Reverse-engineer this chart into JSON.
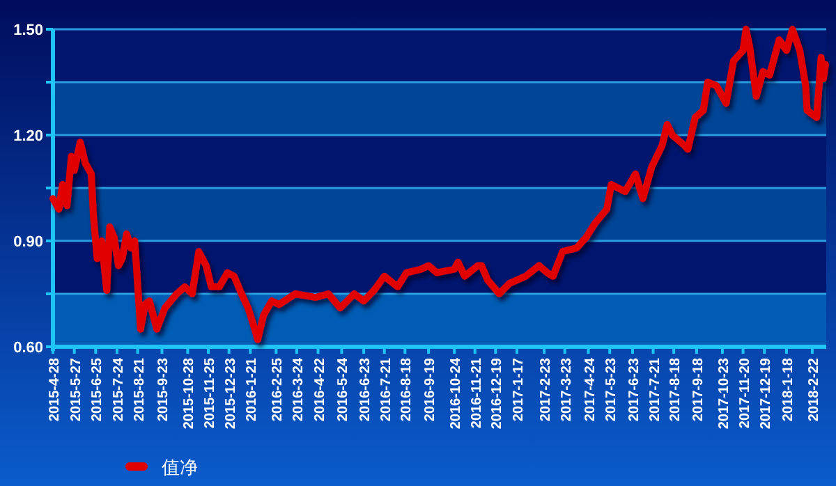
{
  "chart_data": {
    "type": "line",
    "legend": "bottom",
    "grid": "y",
    "marker": "none",
    "line_style": "solid",
    "xlim": [
      "2015-04-28",
      "2018-03-13"
    ],
    "ylim": [
      0.6,
      1.5
    ],
    "bands": [
      {
        "axis": "y",
        "from": 0.6,
        "to": 0.75,
        "color": "#005cb4"
      },
      {
        "axis": "y",
        "from": 0.9,
        "to": 1.05,
        "color": "#004596"
      },
      {
        "axis": "y",
        "from": 1.2,
        "to": 1.35,
        "color": "#004596"
      }
    ],
    "yticks": [
      {
        "value": 0.6,
        "label": "0.60"
      },
      {
        "value": 0.75,
        "label": null
      },
      {
        "value": 0.9,
        "label": "0.90"
      },
      {
        "value": 1.05,
        "label": null
      },
      {
        "value": 1.2,
        "label": "1.20"
      },
      {
        "value": 1.35,
        "label": null
      },
      {
        "value": 1.5,
        "label": "1.50"
      }
    ],
    "xticks": [
      {
        "value": "2015-04-28",
        "label": "2015-4-28"
      },
      {
        "value": "2015-05-27",
        "label": "2015-5-27"
      },
      {
        "value": "2015-06-25",
        "label": "2015-6-25"
      },
      {
        "value": "2015-07-24",
        "label": "2015-7-24"
      },
      {
        "value": "2015-08-21",
        "label": "2015-8-21"
      },
      {
        "value": "2015-09-23",
        "label": "2015-9-23"
      },
      {
        "value": "2015-10-28",
        "label": "2015-10-28"
      },
      {
        "value": "2015-11-25",
        "label": "2015-11-25"
      },
      {
        "value": "2015-12-23",
        "label": "2015-12-23"
      },
      {
        "value": "2016-01-21",
        "label": "2016-1-21"
      },
      {
        "value": "2016-02-25",
        "label": "2016-2-25"
      },
      {
        "value": "2016-03-24",
        "label": "2016-3-24"
      },
      {
        "value": "2016-04-22",
        "label": "2016-4-22"
      },
      {
        "value": "2016-05-24",
        "label": "2016-5-24"
      },
      {
        "value": "2016-06-23",
        "label": "2016-6-23"
      },
      {
        "value": "2016-07-21",
        "label": "2016-7-21"
      },
      {
        "value": "2016-08-18",
        "label": "2016-8-18"
      },
      {
        "value": "2016-09-19",
        "label": "2016-9-19"
      },
      {
        "value": "2016-10-24",
        "label": "2016-10-24"
      },
      {
        "value": "2016-11-21",
        "label": "2016-11-21"
      },
      {
        "value": "2016-12-19",
        "label": "2016-12-19"
      },
      {
        "value": "2017-01-17",
        "label": "2017-1-17"
      },
      {
        "value": "2017-02-23",
        "label": "2017-2-23"
      },
      {
        "value": "2017-03-23",
        "label": "2017-3-23"
      },
      {
        "value": "2017-04-24",
        "label": "2017-4-24"
      },
      {
        "value": "2017-05-23",
        "label": "2017-5-23"
      },
      {
        "value": "2017-06-23",
        "label": "2017-6-23"
      },
      {
        "value": "2017-07-21",
        "label": "2017-7-21"
      },
      {
        "value": "2017-08-18",
        "label": "2017-8-18"
      },
      {
        "value": "2017-09-18",
        "label": "2017-9-18"
      },
      {
        "value": "2017-10-23",
        "label": "2017-10-23"
      },
      {
        "value": "2017-11-20",
        "label": "2017-11-20"
      },
      {
        "value": "2017-12-19",
        "label": "2017-12-19"
      },
      {
        "value": "2018-01-18",
        "label": "2018-1-18"
      },
      {
        "value": "2018-02-22",
        "label": "2018-2-22"
      }
    ],
    "series": [
      {
        "name": "值净",
        "color": "#e00000",
        "x": [
          "2015-04-28",
          "2015-05-06",
          "2015-05-11",
          "2015-05-17",
          "2015-05-23",
          "2015-05-27",
          "2015-06-04",
          "2015-06-11",
          "2015-06-19",
          "2015-06-22",
          "2015-06-27",
          "2015-07-03",
          "2015-07-10",
          "2015-07-14",
          "2015-07-20",
          "2015-07-26",
          "2015-07-31",
          "2015-08-06",
          "2015-08-12",
          "2015-08-17",
          "2015-08-25",
          "2015-08-31",
          "2015-09-06",
          "2015-09-16",
          "2015-09-27",
          "2015-10-13",
          "2015-10-24",
          "2015-11-03",
          "2015-11-12",
          "2015-11-22",
          "2015-11-29",
          "2015-12-10",
          "2015-12-21",
          "2015-12-30",
          "2016-01-09",
          "2016-01-18",
          "2016-01-27",
          "2016-01-31",
          "2016-02-08",
          "2016-02-19",
          "2016-02-29",
          "2016-03-22",
          "2016-04-19",
          "2016-05-06",
          "2016-05-22",
          "2016-06-10",
          "2016-06-23",
          "2016-07-07",
          "2016-07-21",
          "2016-08-02",
          "2016-08-08",
          "2016-08-20",
          "2016-09-09",
          "2016-09-19",
          "2016-09-30",
          "2016-10-24",
          "2016-10-29",
          "2016-11-07",
          "2016-11-25",
          "2016-11-30",
          "2016-12-08",
          "2016-12-24",
          "2017-01-07",
          "2017-01-29",
          "2017-02-16",
          "2017-02-27",
          "2017-03-07",
          "2017-03-20",
          "2017-04-08",
          "2017-04-21",
          "2017-05-03",
          "2017-05-19",
          "2017-05-25",
          "2017-06-13",
          "2017-06-27",
          "2017-07-07",
          "2017-07-19",
          "2017-08-02",
          "2017-08-09",
          "2017-08-16",
          "2017-09-02",
          "2017-09-06",
          "2017-09-16",
          "2017-09-27",
          "2017-10-03",
          "2017-10-15",
          "2017-10-28",
          "2017-11-07",
          "2017-11-20",
          "2017-11-24",
          "2017-11-29",
          "2017-12-08",
          "2017-12-17",
          "2017-12-26",
          "2018-01-08",
          "2018-01-18",
          "2018-01-26",
          "2018-02-05",
          "2018-02-13",
          "2018-02-15",
          "2018-02-28",
          "2018-03-06",
          "2018-03-09",
          "2018-03-12"
        ],
        "values": [
          1.02,
          0.99,
          1.06,
          1.0,
          1.14,
          1.1,
          1.18,
          1.12,
          1.09,
          0.97,
          0.85,
          0.9,
          0.76,
          0.94,
          0.91,
          0.83,
          0.85,
          0.92,
          0.88,
          0.9,
          0.65,
          0.72,
          0.73,
          0.65,
          0.71,
          0.75,
          0.77,
          0.75,
          0.87,
          0.83,
          0.77,
          0.77,
          0.81,
          0.8,
          0.75,
          0.71,
          0.65,
          0.62,
          0.69,
          0.73,
          0.72,
          0.75,
          0.74,
          0.75,
          0.71,
          0.75,
          0.73,
          0.76,
          0.8,
          0.78,
          0.77,
          0.81,
          0.82,
          0.83,
          0.81,
          0.82,
          0.84,
          0.8,
          0.83,
          0.83,
          0.79,
          0.75,
          0.78,
          0.8,
          0.83,
          0.81,
          0.8,
          0.87,
          0.88,
          0.91,
          0.95,
          0.99,
          1.06,
          1.04,
          1.09,
          1.02,
          1.11,
          1.17,
          1.23,
          1.2,
          1.17,
          1.16,
          1.25,
          1.27,
          1.35,
          1.34,
          1.29,
          1.41,
          1.44,
          1.5,
          1.45,
          1.31,
          1.38,
          1.37,
          1.47,
          1.44,
          1.5,
          1.44,
          1.34,
          1.27,
          1.25,
          1.42,
          1.36,
          1.4
        ]
      }
    ]
  }
}
